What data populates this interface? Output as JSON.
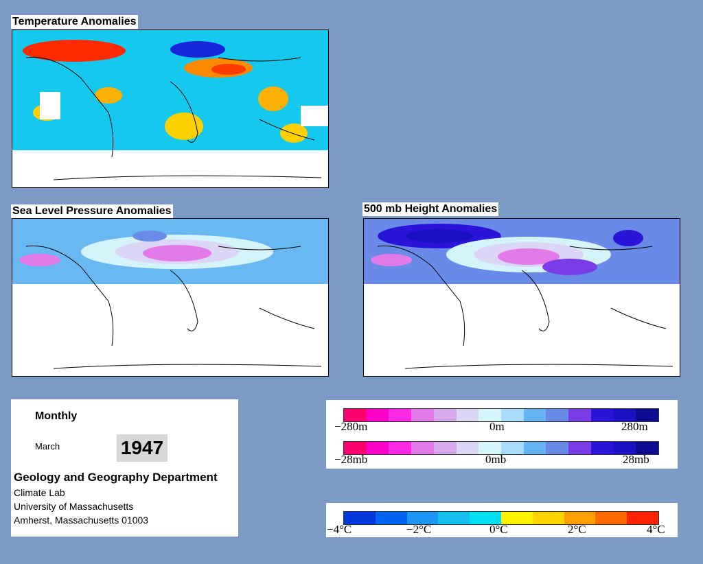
{
  "panels": {
    "temperature": {
      "title": "Temperature Anomalies"
    },
    "pressure": {
      "title": "Sea Level Pressure Anomalies"
    },
    "height": {
      "title": "500 mb Height Anomalies"
    }
  },
  "info": {
    "period": "Monthly",
    "month": "March",
    "year": "1947",
    "department": "Geology and Geography Department",
    "address_lines": [
      "Climate Lab",
      "University of Massachusetts",
      "Amherst, Massachusetts 01003"
    ]
  },
  "legends": {
    "height_scale": {
      "min": "−280m",
      "mid": "0m",
      "max": "280m"
    },
    "pressure_scale": {
      "min": "−28mb",
      "mid": "0mb",
      "max": "28mb"
    },
    "temperature_scale": {
      "ticks": [
        "−4°C",
        "−2°C",
        "0°C",
        "2°C",
        "4°C"
      ]
    }
  },
  "colors": {
    "background": "#7b9ac6",
    "anomaly_scale": [
      "#ff0070",
      "#ff00c8",
      "#ff28e6",
      "#e27ae8",
      "#d6a8ec",
      "#dcd6f6",
      "#d4f4fa",
      "#a8dcfa",
      "#66b4f2",
      "#6a8ae8",
      "#7a3ce6",
      "#2a14d8",
      "#1a12c0",
      "#0c0c90"
    ],
    "temperature_scale": [
      "#0038e0",
      "#0064f0",
      "#1c96f4",
      "#14c0f0",
      "#00e0f0",
      "#fff200",
      "#ffd400",
      "#ffa000",
      "#ff6a00",
      "#ff2200"
    ]
  }
}
